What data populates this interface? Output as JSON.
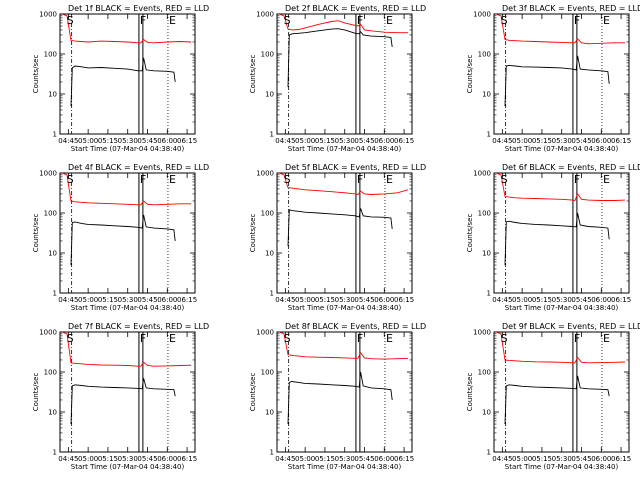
{
  "chart_data": [
    {
      "type": "line",
      "title": "Det 1f BLACK = Events, RED = LLD",
      "xlabel": "Start Time (07-Mar-04 04:38:40)",
      "ylabel": "Counts/sec",
      "xtick_labels": [
        "04:45",
        "05:00",
        "05:15",
        "05:30",
        "05:45",
        "06:00",
        "06:15"
      ],
      "ytick_labels": [
        "1",
        "10",
        "100",
        "1000"
      ],
      "xlim": [
        "04:38:40",
        "06:21:00"
      ],
      "ylim": [
        1,
        1000
      ],
      "y_scale": "log",
      "markers": [
        "S",
        "F",
        "E"
      ],
      "series": [
        {
          "color": "#ff0000",
          "x": [
            "04:40",
            "04:44",
            "04:47",
            "04:50",
            "04:55",
            "05:00",
            "05:10",
            "05:20",
            "05:30",
            "05:38",
            "05:40",
            "05:42",
            "05:45",
            "05:50",
            "06:00",
            "06:10",
            "06:18"
          ],
          "y": [
            1000,
            900,
            220,
            210,
            205,
            200,
            210,
            205,
            200,
            190,
            190,
            230,
            195,
            190,
            200,
            205,
            200
          ]
        },
        {
          "color": "#000000",
          "x": [
            "04:47",
            "04:48",
            "04:50",
            "04:55",
            "05:00",
            "05:10",
            "05:20",
            "05:30",
            "05:38",
            "05:41",
            "05:42",
            "05:44",
            "05:50",
            "06:00",
            "06:05",
            "06:06"
          ],
          "y": [
            5,
            45,
            50,
            48,
            45,
            46,
            44,
            42,
            38,
            38,
            80,
            40,
            38,
            37,
            35,
            20
          ]
        }
      ]
    },
    {
      "type": "line",
      "title": "Det 2f BLACK = Events, RED = LLD",
      "xlabel": "Start Time (07-Mar-04 04:38:40)",
      "ylabel": "Counts/sec",
      "xtick_labels": [
        "04:45",
        "05:00",
        "05:15",
        "05:30",
        "05:45",
        "06:00",
        "06:15"
      ],
      "ytick_labels": [
        "1",
        "10",
        "100",
        "1000"
      ],
      "xlim": [
        "04:38:40",
        "06:21:00"
      ],
      "ylim": [
        1,
        1000
      ],
      "y_scale": "log",
      "markers": [
        "S",
        "F",
        "E"
      ],
      "series": [
        {
          "color": "#ff0000",
          "x": [
            "04:40",
            "04:44",
            "04:47",
            "04:50",
            "04:55",
            "05:00",
            "05:10",
            "05:20",
            "05:25",
            "05:30",
            "05:38",
            "05:40",
            "05:42",
            "05:45",
            "05:50",
            "06:00",
            "06:10",
            "06:18"
          ],
          "y": [
            1000,
            900,
            420,
            400,
            410,
            450,
            550,
            650,
            680,
            600,
            520,
            500,
            550,
            400,
            380,
            350,
            340,
            340
          ]
        },
        {
          "color": "#000000",
          "x": [
            "04:47",
            "04:48",
            "04:50",
            "04:55",
            "05:00",
            "05:10",
            "05:20",
            "05:25",
            "05:30",
            "05:38",
            "05:41",
            "05:42",
            "05:44",
            "05:50",
            "06:00",
            "06:05",
            "06:06"
          ],
          "y": [
            15,
            300,
            320,
            330,
            340,
            380,
            420,
            430,
            400,
            330,
            320,
            360,
            300,
            280,
            270,
            260,
            150
          ]
        }
      ]
    },
    {
      "type": "line",
      "title": "Det 3f BLACK = Events, RED = LLD",
      "xlabel": "Start Time (07-Mar-04 04:38:40)",
      "ylabel": "Counts/sec",
      "xtick_labels": [
        "04:45",
        "05:00",
        "05:15",
        "05:30",
        "05:45",
        "06:00",
        "06:15"
      ],
      "ytick_labels": [
        "1",
        "10",
        "100",
        "1000"
      ],
      "xlim": [
        "04:38:40",
        "06:21:00"
      ],
      "ylim": [
        1,
        1000
      ],
      "y_scale": "log",
      "markers": [
        "S",
        "F",
        "E"
      ],
      "series": [
        {
          "color": "#ff0000",
          "x": [
            "04:40",
            "04:44",
            "04:47",
            "04:50",
            "04:55",
            "05:00",
            "05:10",
            "05:20",
            "05:30",
            "05:38",
            "05:40",
            "05:42",
            "05:45",
            "05:50",
            "06:00",
            "06:10",
            "06:18"
          ],
          "y": [
            1000,
            900,
            230,
            220,
            215,
            210,
            205,
            200,
            195,
            190,
            190,
            240,
            190,
            180,
            185,
            190,
            190
          ]
        },
        {
          "color": "#000000",
          "x": [
            "04:47",
            "04:48",
            "04:50",
            "04:55",
            "05:00",
            "05:10",
            "05:20",
            "05:30",
            "05:38",
            "05:41",
            "05:42",
            "05:44",
            "05:50",
            "06:00",
            "06:05",
            "06:06"
          ],
          "y": [
            5,
            50,
            52,
            50,
            48,
            47,
            46,
            45,
            42,
            40,
            90,
            42,
            40,
            38,
            36,
            18
          ]
        }
      ]
    },
    {
      "type": "line",
      "title": "Det 4f BLACK = Events, RED = LLD",
      "xlabel": "Start Time (07-Mar-04 04:38:40)",
      "ylabel": "Counts/sec",
      "xtick_labels": [
        "04:45",
        "05:00",
        "05:15",
        "05:30",
        "05:45",
        "06:00",
        "06:15"
      ],
      "ytick_labels": [
        "1",
        "10",
        "100",
        "1000"
      ],
      "xlim": [
        "04:38:40",
        "06:21:00"
      ],
      "ylim": [
        1,
        1000
      ],
      "y_scale": "log",
      "markers": [
        "S",
        "F",
        "E"
      ],
      "series": [
        {
          "color": "#ff0000",
          "x": [
            "04:40",
            "04:44",
            "04:47",
            "04:50",
            "04:55",
            "05:00",
            "05:10",
            "05:20",
            "05:30",
            "05:38",
            "05:40",
            "05:42",
            "05:45",
            "05:50",
            "06:00",
            "06:10",
            "06:18"
          ],
          "y": [
            1000,
            900,
            200,
            190,
            185,
            180,
            175,
            170,
            165,
            160,
            160,
            200,
            165,
            160,
            165,
            170,
            170
          ]
        },
        {
          "color": "#000000",
          "x": [
            "04:47",
            "04:48",
            "04:50",
            "04:55",
            "05:00",
            "05:10",
            "05:20",
            "05:30",
            "05:38",
            "05:41",
            "05:42",
            "05:44",
            "05:50",
            "06:00",
            "06:05",
            "06:06"
          ],
          "y": [
            5,
            58,
            60,
            55,
            52,
            50,
            48,
            46,
            44,
            42,
            90,
            45,
            42,
            40,
            38,
            20
          ]
        }
      ]
    },
    {
      "type": "line",
      "title": "Det 5f BLACK = Events, RED = LLD",
      "xlabel": "Start Time (07-Mar-04 04:38:40)",
      "ylabel": "Counts/sec",
      "xtick_labels": [
        "04:45",
        "05:00",
        "05:15",
        "05:30",
        "05:45",
        "06:00",
        "06:15"
      ],
      "ytick_labels": [
        "1",
        "10",
        "100",
        "1000"
      ],
      "xlim": [
        "04:38:40",
        "06:21:00"
      ],
      "ylim": [
        1,
        1000
      ],
      "y_scale": "log",
      "markers": [
        "S",
        "F",
        "E"
      ],
      "series": [
        {
          "color": "#ff0000",
          "x": [
            "04:40",
            "04:44",
            "04:47",
            "04:50",
            "04:55",
            "05:00",
            "05:10",
            "05:20",
            "05:30",
            "05:38",
            "05:40",
            "05:42",
            "05:45",
            "05:50",
            "06:00",
            "06:10",
            "06:18"
          ],
          "y": [
            1000,
            900,
            430,
            420,
            400,
            380,
            360,
            340,
            320,
            300,
            290,
            350,
            300,
            290,
            300,
            320,
            380
          ]
        },
        {
          "color": "#000000",
          "x": [
            "04:47",
            "04:48",
            "04:50",
            "04:55",
            "05:00",
            "05:10",
            "05:20",
            "05:30",
            "05:38",
            "05:41",
            "05:42",
            "05:44",
            "05:50",
            "06:00",
            "06:05",
            "06:06"
          ],
          "y": [
            15,
            120,
            115,
            110,
            105,
            100,
            95,
            90,
            85,
            80,
            130,
            85,
            80,
            78,
            75,
            40
          ]
        }
      ]
    },
    {
      "type": "line",
      "title": "Det 6f BLACK = Events, RED = LLD",
      "xlabel": "Start Time (07-Mar-04 04:38:40)",
      "ylabel": "Counts/sec",
      "xtick_labels": [
        "04:45",
        "05:00",
        "05:15",
        "05:30",
        "05:45",
        "06:00",
        "06:15"
      ],
      "ytick_labels": [
        "1",
        "10",
        "100",
        "1000"
      ],
      "xlim": [
        "04:38:40",
        "06:21:00"
      ],
      "ylim": [
        1,
        1000
      ],
      "y_scale": "log",
      "markers": [
        "S",
        "F",
        "E"
      ],
      "series": [
        {
          "color": "#ff0000",
          "x": [
            "04:40",
            "04:44",
            "04:47",
            "04:50",
            "04:55",
            "05:00",
            "05:10",
            "05:20",
            "05:30",
            "05:38",
            "05:40",
            "05:42",
            "05:45",
            "05:50",
            "06:00",
            "06:10",
            "06:18"
          ],
          "y": [
            1000,
            900,
            260,
            250,
            240,
            235,
            230,
            225,
            220,
            210,
            205,
            300,
            220,
            210,
            205,
            205,
            210
          ]
        },
        {
          "color": "#000000",
          "x": [
            "04:47",
            "04:48",
            "04:50",
            "04:55",
            "05:00",
            "05:10",
            "05:20",
            "05:30",
            "05:38",
            "05:41",
            "05:42",
            "05:44",
            "05:50",
            "06:00",
            "06:05",
            "06:06"
          ],
          "y": [
            5,
            60,
            62,
            58,
            55,
            52,
            50,
            48,
            46,
            45,
            100,
            50,
            46,
            44,
            42,
            22
          ]
        }
      ]
    },
    {
      "type": "line",
      "title": "Det 7f BLACK = Events, RED = LLD",
      "xlabel": "Start Time (07-Mar-04 04:38:40)",
      "ylabel": "Counts/sec",
      "xtick_labels": [
        "04:45",
        "05:00",
        "05:15",
        "05:30",
        "05:45",
        "06:00",
        "06:15"
      ],
      "ytick_labels": [
        "1",
        "10",
        "100",
        "1000"
      ],
      "xlim": [
        "04:38:40",
        "06:21:00"
      ],
      "ylim": [
        1,
        1000
      ],
      "y_scale": "log",
      "markers": [
        "S",
        "F",
        "E"
      ],
      "series": [
        {
          "color": "#ff0000",
          "x": [
            "04:40",
            "04:44",
            "04:47",
            "04:50",
            "04:55",
            "05:00",
            "05:10",
            "05:20",
            "05:30",
            "05:38",
            "05:40",
            "05:42",
            "05:45",
            "05:50",
            "06:00",
            "06:10",
            "06:18"
          ],
          "y": [
            1000,
            900,
            170,
            165,
            160,
            155,
            150,
            148,
            145,
            140,
            140,
            175,
            145,
            140,
            142,
            145,
            148
          ]
        },
        {
          "color": "#000000",
          "x": [
            "04:47",
            "04:48",
            "04:50",
            "04:55",
            "05:00",
            "05:10",
            "05:20",
            "05:30",
            "05:38",
            "05:41",
            "05:42",
            "05:44",
            "05:50",
            "06:00",
            "06:05",
            "06:06"
          ],
          "y": [
            5,
            45,
            48,
            46,
            44,
            42,
            41,
            40,
            39,
            38,
            70,
            40,
            38,
            37,
            36,
            25
          ]
        }
      ]
    },
    {
      "type": "line",
      "title": "Det 8f BLACK = Events, RED = LLD",
      "xlabel": "Start Time (07-Mar-04 04:38:40)",
      "ylabel": "Counts/sec",
      "xtick_labels": [
        "04:45",
        "05:00",
        "05:15",
        "05:30",
        "05:45",
        "06:00",
        "06:15"
      ],
      "ytick_labels": [
        "1",
        "10",
        "100",
        "1000"
      ],
      "xlim": [
        "04:38:40",
        "06:21:00"
      ],
      "ylim": [
        1,
        1000
      ],
      "y_scale": "log",
      "markers": [
        "S",
        "F",
        "E"
      ],
      "series": [
        {
          "color": "#ff0000",
          "x": [
            "04:40",
            "04:44",
            "04:47",
            "04:50",
            "04:55",
            "05:00",
            "05:10",
            "05:20",
            "05:30",
            "05:38",
            "05:40",
            "05:42",
            "05:45",
            "05:50",
            "06:00",
            "06:10",
            "06:18"
          ],
          "y": [
            1000,
            900,
            270,
            260,
            250,
            240,
            235,
            230,
            225,
            220,
            220,
            300,
            225,
            215,
            210,
            215,
            220
          ]
        },
        {
          "color": "#000000",
          "x": [
            "04:47",
            "04:48",
            "04:50",
            "04:55",
            "05:00",
            "05:10",
            "05:20",
            "05:30",
            "05:38",
            "05:41",
            "05:42",
            "05:44",
            "05:50",
            "06:00",
            "06:05",
            "06:06"
          ],
          "y": [
            5,
            55,
            58,
            55,
            52,
            50,
            48,
            46,
            44,
            42,
            100,
            45,
            40,
            38,
            36,
            20
          ]
        }
      ]
    },
    {
      "type": "line",
      "title": "Det 9f BLACK = Events, RED = LLD",
      "xlabel": "Start Time (07-Mar-04 04:38:40)",
      "ylabel": "Counts/sec",
      "xtick_labels": [
        "04:45",
        "05:00",
        "05:15",
        "05:30",
        "05:45",
        "06:00",
        "06:15"
      ],
      "ytick_labels": [
        "1",
        "10",
        "100",
        "1000"
      ],
      "xlim": [
        "04:38:40",
        "06:21:00"
      ],
      "ylim": [
        1,
        1000
      ],
      "y_scale": "log",
      "markers": [
        "S",
        "F",
        "E"
      ],
      "series": [
        {
          "color": "#ff0000",
          "x": [
            "04:40",
            "04:44",
            "04:47",
            "04:50",
            "04:55",
            "05:00",
            "05:10",
            "05:20",
            "05:30",
            "05:38",
            "05:40",
            "05:42",
            "05:45",
            "05:50",
            "06:00",
            "06:10",
            "06:18"
          ],
          "y": [
            1000,
            900,
            200,
            195,
            190,
            185,
            180,
            178,
            175,
            170,
            170,
            230,
            175,
            170,
            172,
            175,
            178
          ]
        },
        {
          "color": "#000000",
          "x": [
            "04:47",
            "04:48",
            "04:50",
            "04:55",
            "05:00",
            "05:10",
            "05:20",
            "05:30",
            "05:38",
            "05:41",
            "05:42",
            "05:44",
            "05:50",
            "06:00",
            "06:05",
            "06:06"
          ],
          "y": [
            5,
            45,
            48,
            46,
            44,
            42,
            41,
            40,
            39,
            38,
            80,
            40,
            38,
            37,
            36,
            25
          ]
        }
      ]
    }
  ]
}
